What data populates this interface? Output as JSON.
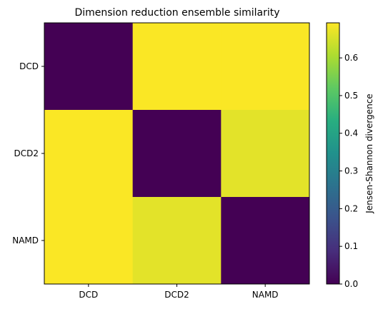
{
  "chart_data": {
    "type": "heatmap",
    "title": "Dimension reduction ensemble similarity",
    "x_categories": [
      "DCD",
      "DCD2",
      "NAMD"
    ],
    "y_categories": [
      "DCD",
      "DCD2",
      "NAMD"
    ],
    "values": [
      [
        0.0,
        0.69,
        0.69
      ],
      [
        0.69,
        0.0,
        0.665
      ],
      [
        0.69,
        0.665,
        0.0
      ]
    ],
    "colorbar": {
      "label": "Jensen-Shannon divergence",
      "min": 0.0,
      "max": 0.693,
      "ticks": [
        0.0,
        0.1,
        0.2,
        0.3,
        0.4,
        0.5,
        0.6
      ],
      "tick_labels": [
        "0.0",
        "0.1",
        "0.2",
        "0.3",
        "0.4",
        "0.5",
        "0.6"
      ],
      "colormap": "viridis"
    },
    "grid": false
  }
}
